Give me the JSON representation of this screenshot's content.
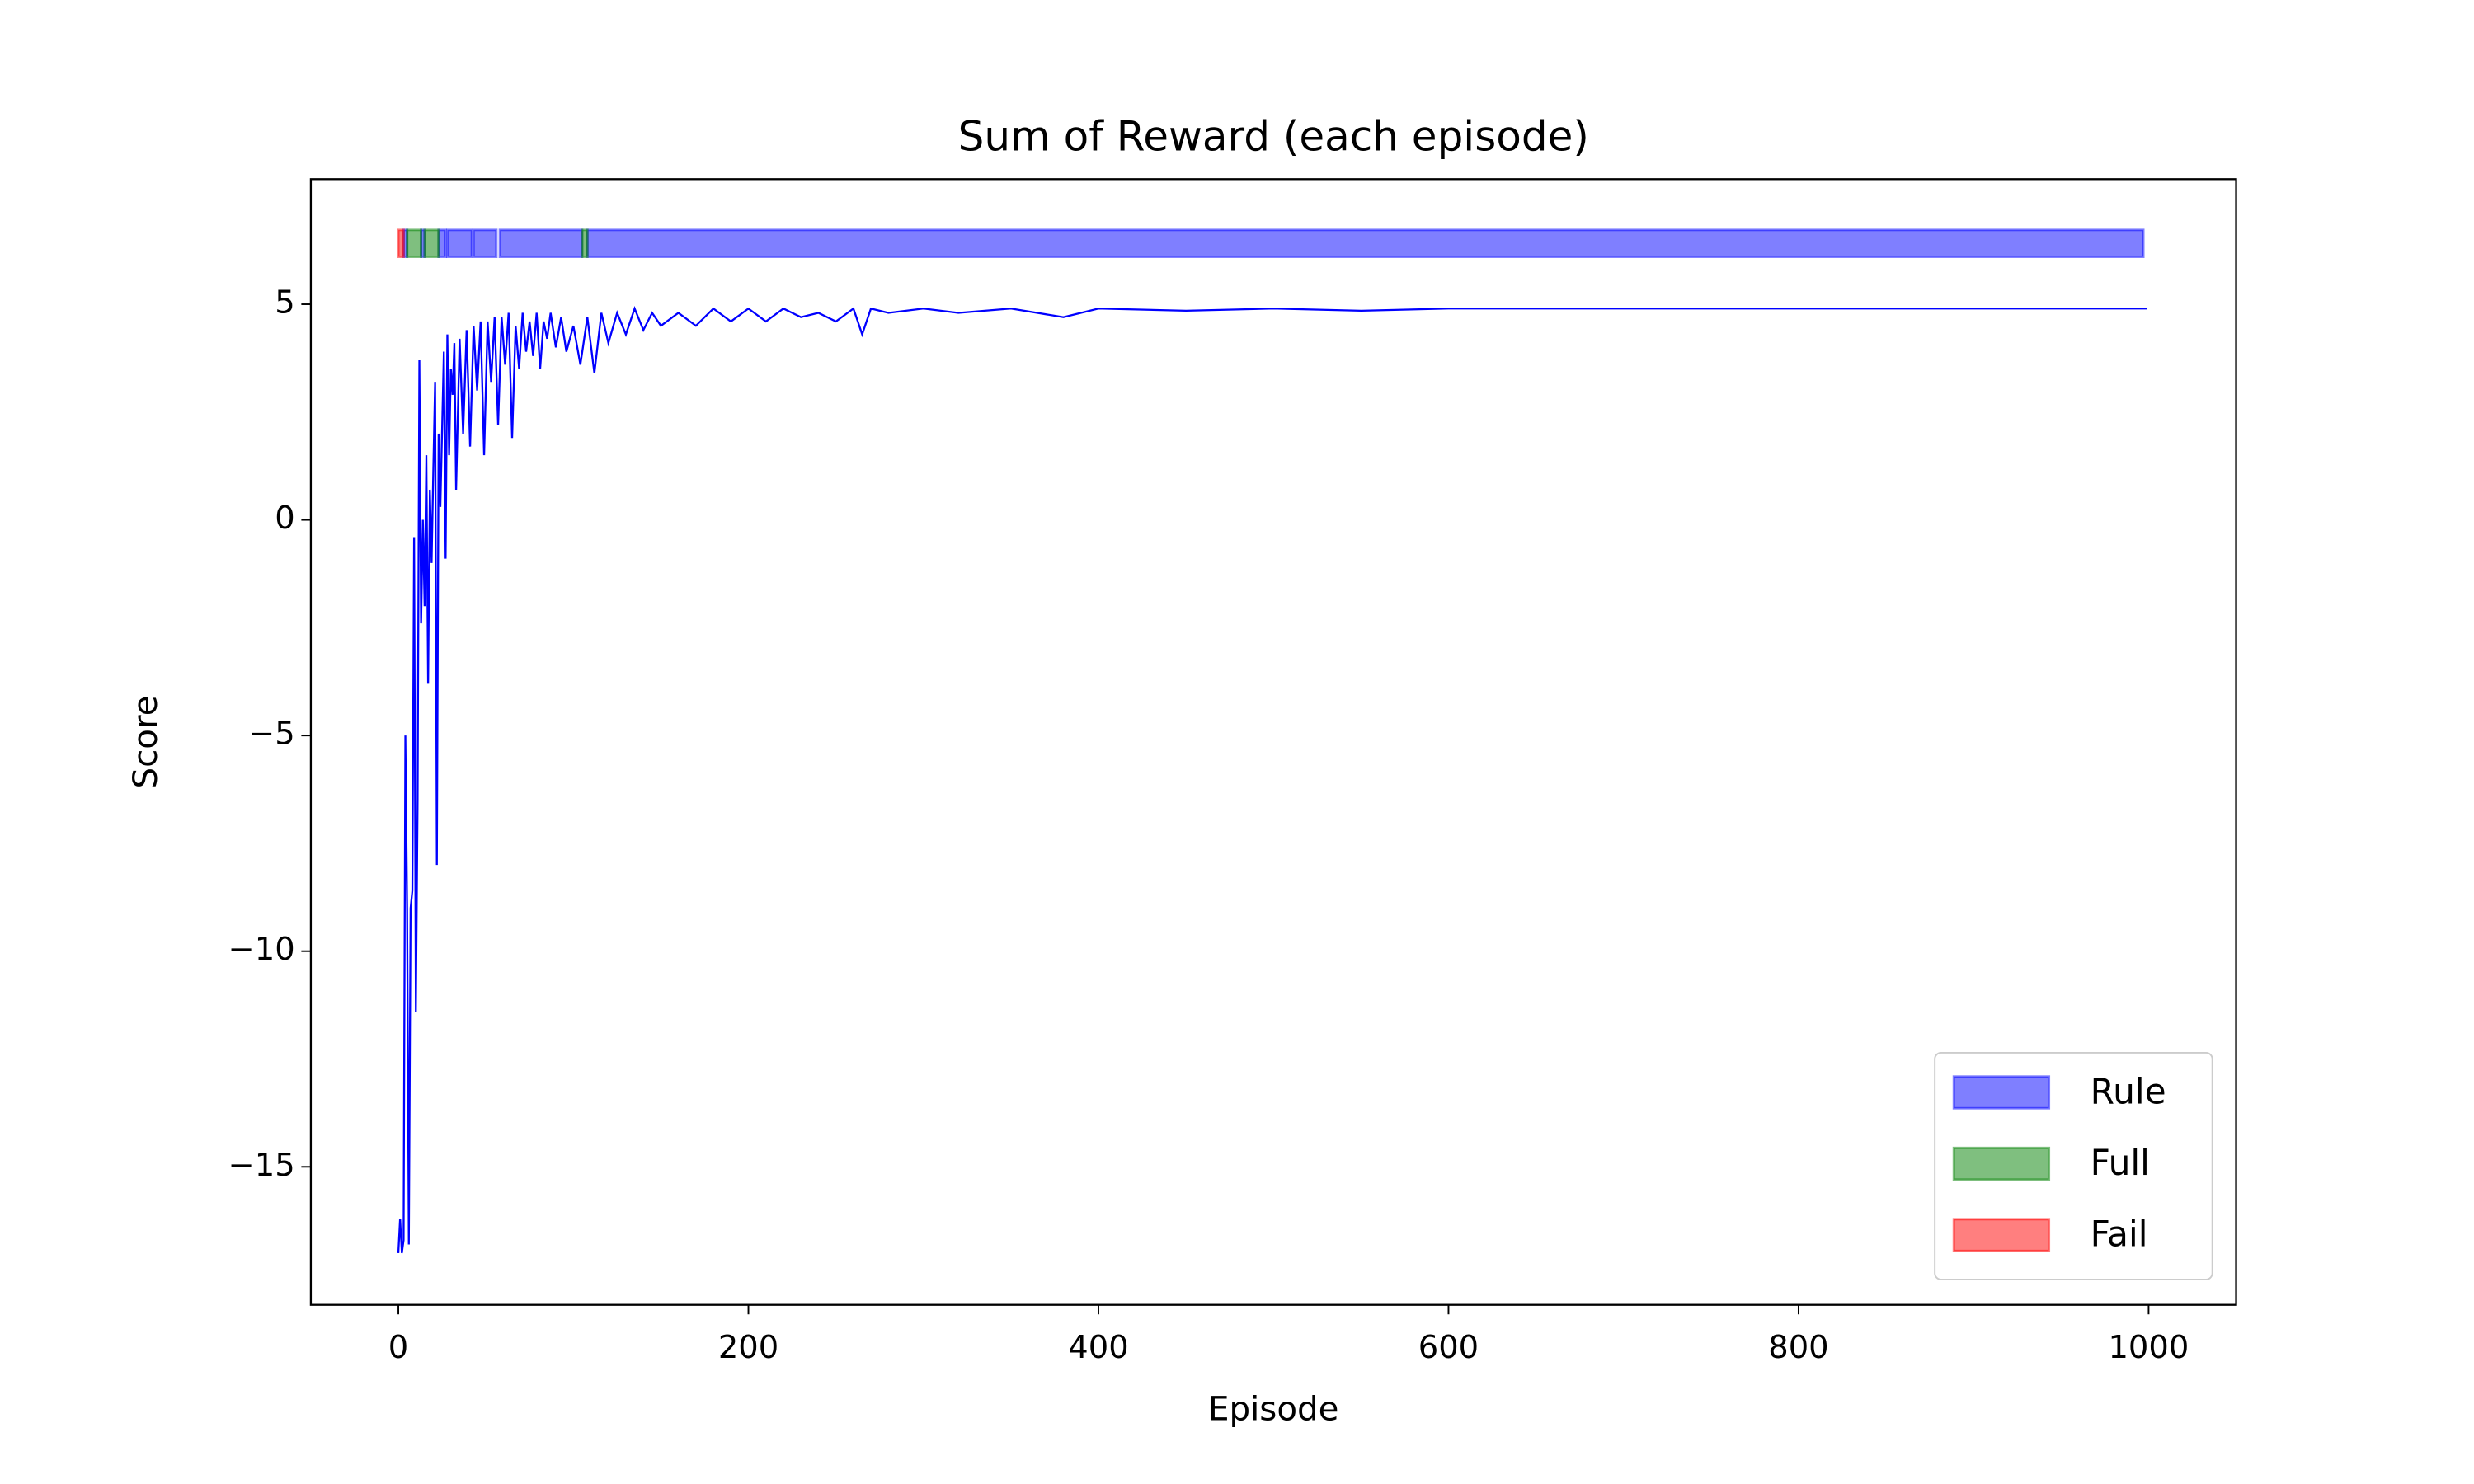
{
  "chart_data": {
    "type": "line",
    "title": "Sum of Reward (each episode)",
    "x_label": "Episode",
    "y_label": "Score",
    "xlim": [
      -50,
      1050
    ],
    "ylim": [
      -18.2,
      7.9
    ],
    "xticks": [
      0,
      200,
      400,
      600,
      800,
      1000
    ],
    "yticks": [
      {
        "value": -15,
        "label": "−15"
      },
      {
        "value": -10,
        "label": "−10"
      },
      {
        "value": -5,
        "label": "−5"
      },
      0,
      5
    ],
    "line_color": "#0000ff",
    "x": [
      0,
      1,
      2,
      3,
      4,
      5,
      6,
      7,
      8,
      9,
      10,
      11,
      12,
      13,
      14,
      15,
      16,
      17,
      18,
      19,
      20,
      21,
      22,
      23,
      24,
      25,
      26,
      27,
      28,
      29,
      30,
      31,
      32,
      33,
      35,
      37,
      39,
      41,
      43,
      45,
      47,
      49,
      51,
      53,
      55,
      57,
      59,
      61,
      63,
      65,
      67,
      69,
      71,
      73,
      75,
      77,
      79,
      81,
      83,
      85,
      87,
      90,
      93,
      96,
      100,
      104,
      108,
      112,
      116,
      120,
      125,
      130,
      135,
      140,
      145,
      150,
      160,
      170,
      180,
      190,
      200,
      210,
      220,
      230,
      240,
      250,
      260,
      265,
      270,
      280,
      300,
      320,
      350,
      380,
      400,
      450,
      500,
      550,
      600,
      650,
      700,
      800,
      900,
      999
    ],
    "values": [
      -17,
      -16.2,
      -17,
      -16.7,
      -5,
      -9,
      -16.8,
      -9,
      -8.6,
      -0.4,
      -11.4,
      -6.5,
      3.7,
      -2.4,
      0,
      -2,
      1.5,
      -3.8,
      0.7,
      -1,
      1.2,
      3.2,
      -8,
      2,
      0.3,
      2.1,
      3.9,
      -0.9,
      4.3,
      1.5,
      3.5,
      2.9,
      4.1,
      0.7,
      4.2,
      2,
      4.4,
      1.7,
      4.5,
      3,
      4.6,
      1.5,
      4.6,
      3.2,
      4.7,
      2.2,
      4.7,
      3.6,
      4.8,
      1.9,
      4.5,
      3.5,
      4.8,
      3.9,
      4.6,
      3.8,
      4.8,
      3.5,
      4.6,
      4.2,
      4.8,
      4,
      4.7,
      3.9,
      4.5,
      3.6,
      4.7,
      3.4,
      4.8,
      4.1,
      4.8,
      4.3,
      4.9,
      4.4,
      4.8,
      4.5,
      4.8,
      4.5,
      4.9,
      4.6,
      4.9,
      4.6,
      4.9,
      4.7,
      4.8,
      4.6,
      4.9,
      4.3,
      4.9,
      4.8,
      4.9,
      4.8,
      4.9,
      4.7,
      4.9,
      4.85,
      4.9,
      4.85,
      4.9,
      4.9,
      4.9,
      4.9,
      4.9,
      4.9
    ],
    "spans": [
      {
        "name": "Rule",
        "color": "#0000ff",
        "intervals": [
          [
            3,
            5
          ],
          [
            13,
            15
          ],
          [
            23,
            27
          ],
          [
            28,
            42
          ],
          [
            43,
            56
          ],
          [
            58,
            105
          ],
          [
            108,
            997
          ]
        ]
      },
      {
        "name": "Full",
        "color": "#008000",
        "intervals": [
          [
            5,
            13
          ],
          [
            15,
            23
          ],
          [
            105,
            108
          ]
        ]
      },
      {
        "name": "Fail",
        "color": "#ff0000",
        "intervals": [
          [
            0,
            3
          ]
        ]
      }
    ],
    "legend": "lower right"
  }
}
